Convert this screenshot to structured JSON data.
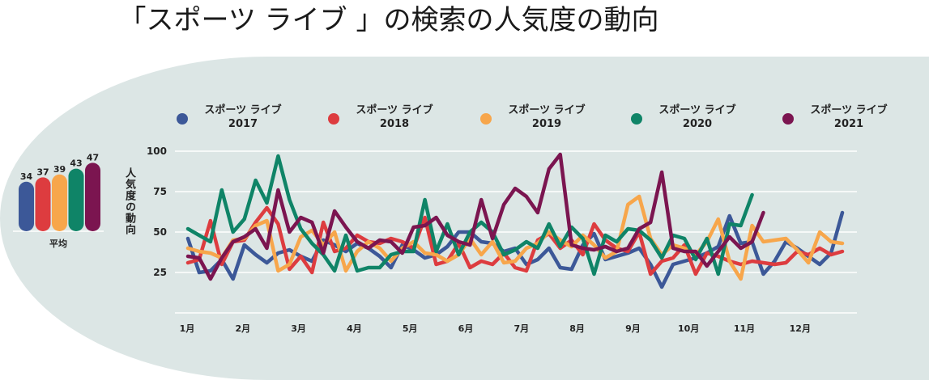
{
  "title": "「スポーツ ライブ 」の検索の人気度の動向",
  "chart_data": {
    "type": "line",
    "ylabel": "人気度の動向",
    "ylim": [
      0,
      100
    ],
    "yticks": [
      25,
      50,
      75,
      100
    ],
    "months": [
      "1月",
      "2月",
      "3月",
      "4月",
      "5月",
      "6月",
      "7月",
      "8月",
      "9月",
      "10月",
      "11月",
      "12月"
    ],
    "legend_position": "top",
    "average_label": "平均",
    "series": [
      {
        "label_line1": "スポーツ ライブ",
        "label_line2": "2017",
        "color": "#3c5898",
        "average": 34,
        "values": [
          46,
          25,
          26,
          33,
          21,
          42,
          36,
          31,
          37,
          39,
          35,
          32,
          45,
          42,
          38,
          43,
          40,
          35,
          28,
          42,
          39,
          34,
          36,
          41,
          50,
          50,
          44,
          43,
          38,
          40,
          30,
          33,
          40,
          28,
          27,
          42,
          49,
          33,
          35,
          37,
          40,
          30,
          16,
          30,
          32,
          34,
          37,
          41,
          60,
          43,
          44,
          24,
          32,
          44,
          40,
          35,
          30,
          37,
          62
        ]
      },
      {
        "label_line1": "スポーツ ライブ",
        "label_line2": "2018",
        "color": "#dd3c3f",
        "average": 37,
        "values": [
          31,
          33,
          57,
          30,
          44,
          45,
          56,
          65,
          55,
          27,
          35,
          25,
          56,
          38,
          40,
          48,
          44,
          43,
          46,
          44,
          40,
          59,
          30,
          32,
          43,
          28,
          32,
          30,
          37,
          28,
          26,
          45,
          49,
          40,
          45,
          36,
          55,
          45,
          40,
          38,
          50,
          24,
          32,
          34,
          42,
          24,
          37,
          35,
          32,
          30,
          32,
          31,
          30,
          31,
          38,
          36,
          40,
          36,
          38
        ]
      },
      {
        "label_line1": "スポーツ ライブ",
        "label_line2": "2019",
        "color": "#f7a64b",
        "average": 39,
        "values": [
          40,
          38,
          37,
          34,
          45,
          46,
          54,
          57,
          26,
          30,
          47,
          51,
          42,
          50,
          26,
          38,
          44,
          40,
          32,
          40,
          44,
          37,
          36,
          32,
          36,
          46,
          36,
          44,
          31,
          32,
          40,
          43,
          50,
          45,
          41,
          48,
          42,
          34,
          38,
          67,
          72,
          46,
          36,
          42,
          40,
          36,
          44,
          58,
          32,
          21,
          54,
          44,
          45,
          46,
          39,
          31,
          50,
          44,
          43
        ]
      },
      {
        "label_line1": "スポーツ ライブ",
        "label_line2": "2020",
        "color": "#0f8467",
        "average": 43,
        "values": [
          52,
          48,
          44,
          76,
          50,
          58,
          82,
          68,
          97,
          70,
          52,
          43,
          36,
          26,
          48,
          26,
          28,
          28,
          36,
          38,
          38,
          70,
          38,
          55,
          36,
          50,
          56,
          50,
          36,
          39,
          44,
          40,
          55,
          41,
          53,
          46,
          24,
          48,
          44,
          52,
          51,
          45,
          34,
          48,
          46,
          33,
          46,
          24,
          55,
          54,
          73
        ]
      },
      {
        "label_line1": "スポーツ ライブ",
        "label_line2": "2021",
        "color": "#7b1550",
        "average": 47,
        "values": [
          35,
          34,
          21,
          34,
          44,
          47,
          52,
          40,
          76,
          50,
          59,
          56,
          37,
          63,
          53,
          44,
          40,
          45,
          44,
          37,
          53,
          54,
          59,
          48,
          44,
          42,
          70,
          46,
          67,
          77,
          72,
          62,
          89,
          98,
          42,
          40,
          39,
          41,
          38,
          40,
          52,
          56,
          87,
          40,
          38,
          38,
          29,
          38,
          47,
          40,
          44,
          62
        ]
      }
    ]
  }
}
